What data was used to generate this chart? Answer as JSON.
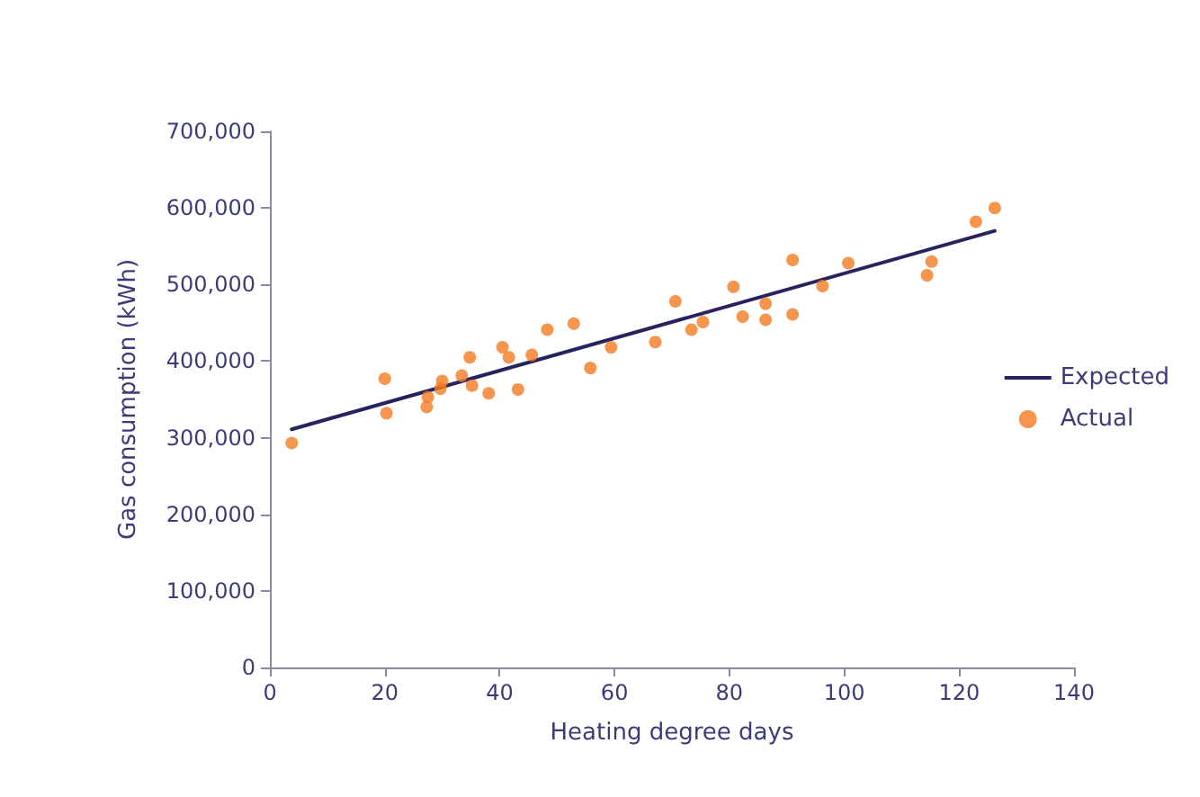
{
  "chart_data": {
    "type": "scatter",
    "xlabel": "Heating degree days",
    "ylabel": "Gas consumption (kWh)",
    "xlim": [
      0,
      140
    ],
    "xticks": [
      0,
      20,
      40,
      60,
      80,
      100,
      120,
      140
    ],
    "ylim": [
      0,
      700000
    ],
    "yticks": [
      0,
      {
        "value": 100000,
        "label": "100,000"
      },
      {
        "value": 200000,
        "label": "200,000"
      },
      {
        "value": 300000,
        "label": "300,000"
      },
      {
        "value": 400000,
        "label": "400,000"
      },
      {
        "value": 500000,
        "label": "500,000"
      },
      {
        "value": 600000,
        "label": "600,000"
      },
      {
        "value": 700000,
        "label": "700,000"
      }
    ],
    "grid": false,
    "legend": "right",
    "marker": "circle",
    "series": [
      {
        "name": "Expected",
        "type": "line",
        "color": "#27235f",
        "marker": "none",
        "line_style": "solid",
        "x": [
          3.8,
          126.2
        ],
        "values": [
          311000,
          570000
        ]
      },
      {
        "name": "Actual",
        "color": "#f47b20",
        "x": [
          3.8,
          20.0,
          20.3,
          27.3,
          27.5,
          29.7,
          30.0,
          33.4,
          34.8,
          35.2,
          38.1,
          40.5,
          41.6,
          43.2,
          45.6,
          48.3,
          52.9,
          55.8,
          59.4,
          67.1,
          70.6,
          73.4,
          75.4,
          80.7,
          82.3,
          86.3,
          86.3,
          91.0,
          91.0,
          96.2,
          100.7,
          114.4,
          115.2,
          122.9,
          126.2
        ],
        "values": [
          293000,
          377000,
          332000,
          340000,
          353000,
          364000,
          374000,
          381000,
          405000,
          368000,
          358000,
          418000,
          405000,
          363000,
          408000,
          441000,
          449000,
          391000,
          418000,
          425000,
          478000,
          441000,
          451000,
          497000,
          458000,
          475000,
          454000,
          532000,
          461000,
          498000,
          528000,
          512000,
          530000,
          582000,
          600000
        ]
      }
    ]
  }
}
